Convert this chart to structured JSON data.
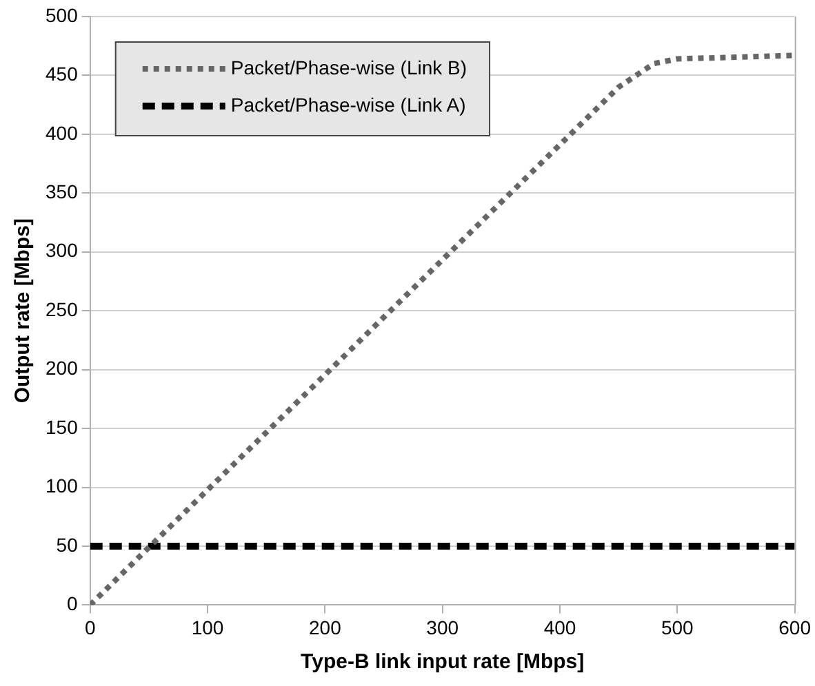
{
  "chart_data": {
    "type": "line",
    "xlabel": "Type-B link input rate [Mbps]",
    "ylabel": "Output rate [Mbps]",
    "xlim": [
      0,
      600
    ],
    "xticks": [
      0,
      100,
      200,
      300,
      400,
      500,
      600
    ],
    "ylim": [
      0,
      500
    ],
    "yticks": [
      0,
      50,
      100,
      150,
      200,
      250,
      300,
      350,
      400,
      450,
      500
    ],
    "grid": "y",
    "legend": "top left",
    "marker": "none",
    "series": [
      {
        "name": "Packet/Phase-wise (Link B)",
        "color": "#666666",
        "line_style": "dotted",
        "x": [
          0,
          450,
          480,
          500,
          600
        ],
        "values": [
          0,
          440,
          460,
          464,
          467
        ]
      },
      {
        "name": "Packet/Phase-wise (Link A)",
        "color": "#000000",
        "line_style": "dashed",
        "x": [
          0,
          600
        ],
        "values": [
          50,
          50
        ]
      }
    ]
  }
}
